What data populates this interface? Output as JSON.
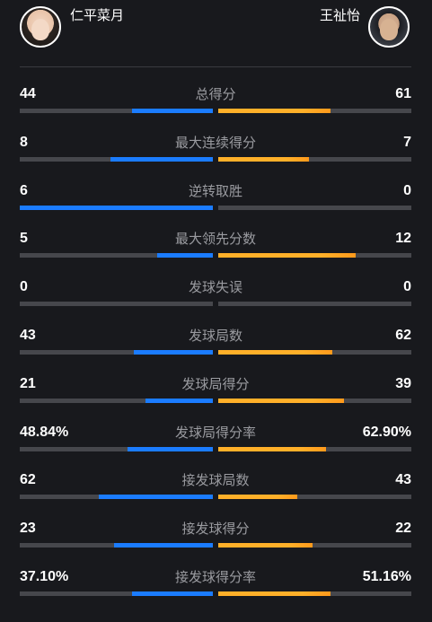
{
  "players": {
    "left": {
      "name": "仁平菜月"
    },
    "right": {
      "name": "王祉怡"
    }
  },
  "colors": {
    "left_bar": "#1b7cff",
    "right_bar": "#ffb029",
    "track": "#46474c",
    "label": "#9a9ba0",
    "background": "#18191d"
  },
  "stats": [
    {
      "label": "总得分",
      "left": "44",
      "right": "61",
      "left_fill": 0.42,
      "right_fill": 0.58
    },
    {
      "label": "最大连续得分",
      "left": "8",
      "right": "7",
      "left_fill": 0.53,
      "right_fill": 0.47
    },
    {
      "label": "逆转取胜",
      "left": "6",
      "right": "0",
      "left_fill": 1.0,
      "right_fill": 0.0
    },
    {
      "label": "最大领先分数",
      "left": "5",
      "right": "12",
      "left_fill": 0.29,
      "right_fill": 0.71
    },
    {
      "label": "发球失误",
      "left": "0",
      "right": "0",
      "left_fill": 0.0,
      "right_fill": 0.0
    },
    {
      "label": "发球局数",
      "left": "43",
      "right": "62",
      "left_fill": 0.41,
      "right_fill": 0.59
    },
    {
      "label": "发球局得分",
      "left": "21",
      "right": "39",
      "left_fill": 0.35,
      "right_fill": 0.65
    },
    {
      "label": "发球局得分率",
      "left": "48.84%",
      "right": "62.90%",
      "left_fill": 0.44,
      "right_fill": 0.56
    },
    {
      "label": "接发球局数",
      "left": "62",
      "right": "43",
      "left_fill": 0.59,
      "right_fill": 0.41
    },
    {
      "label": "接发球得分",
      "left": "23",
      "right": "22",
      "left_fill": 0.51,
      "right_fill": 0.49
    },
    {
      "label": "接发球得分率",
      "left": "37.10%",
      "right": "51.16%",
      "left_fill": 0.42,
      "right_fill": 0.58
    }
  ]
}
